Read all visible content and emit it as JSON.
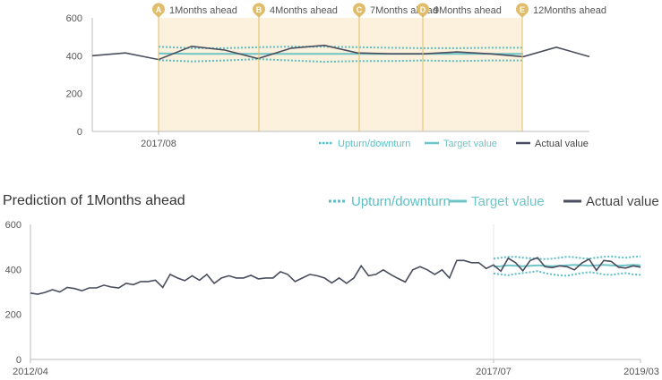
{
  "colors": {
    "actual": "#4a4d5e",
    "target": "#6ec4c6",
    "band": "#5bbfc4",
    "marker": "#e0bd6a",
    "shade": "#fbf1dc",
    "axis": "#bbbbbb",
    "grid": "#e6e6e6"
  },
  "chart_data": [
    {
      "type": "line",
      "title": "",
      "ylim": [
        0,
        600
      ],
      "yticks": [
        "0",
        "200",
        "400",
        "600"
      ],
      "xtick_labels": [
        "2017/08"
      ],
      "legend": {
        "placement": "bottom-right",
        "items": [
          "Upturn/downturn",
          "Target value",
          "Actual value"
        ]
      },
      "markers": [
        {
          "letter": "A",
          "label": "1Months ahead"
        },
        {
          "letter": "B",
          "label": "4Months ahead"
        },
        {
          "letter": "C",
          "label": "7Months ahead"
        },
        {
          "letter": "D",
          "label": "9Months ahead"
        },
        {
          "letter": "E",
          "label": "12Months ahead"
        }
      ],
      "series": [
        {
          "name": "Actual value",
          "values": [
            400,
            415,
            380,
            450,
            430,
            385,
            440,
            455,
            415,
            410,
            410,
            420,
            410,
            395,
            445,
            395
          ]
        },
        {
          "name": "Target value",
          "values": [
            null,
            null,
            412,
            410,
            410,
            410,
            410,
            410,
            410,
            410,
            410,
            410,
            410,
            410,
            null,
            null
          ]
        },
        {
          "name": "Upturn/downturn",
          "upper": [
            null,
            null,
            448,
            440,
            440,
            445,
            448,
            448,
            445,
            442,
            440,
            440,
            442,
            442,
            null,
            null
          ],
          "lower": [
            null,
            null,
            377,
            370,
            375,
            382,
            375,
            368,
            372,
            372,
            375,
            372,
            375,
            375,
            null,
            null
          ]
        }
      ]
    },
    {
      "type": "line",
      "title": "Prediction of 1Months ahead",
      "ylim": [
        0,
        600
      ],
      "yticks": [
        "0",
        "200",
        "400",
        "600"
      ],
      "xtick_labels": [
        "2012/04",
        "2017/07",
        "2019/03"
      ],
      "legend": {
        "placement": "top-right",
        "items": [
          "Upturn/downturn",
          "Target value",
          "Actual value"
        ]
      },
      "series": [
        {
          "name": "Actual value",
          "values": [
            295,
            290,
            298,
            310,
            300,
            320,
            315,
            305,
            318,
            318,
            330,
            322,
            318,
            338,
            332,
            346,
            346,
            352,
            320,
            378,
            362,
            350,
            372,
            352,
            378,
            338,
            362,
            372,
            362,
            362,
            374,
            358,
            362,
            362,
            390,
            378,
            346,
            362,
            378,
            372,
            362,
            340,
            362,
            338,
            362,
            416,
            372,
            378,
            398,
            378,
            360,
            344,
            398,
            412,
            398,
            378,
            398,
            362,
            440,
            440,
            430,
            430,
            404,
            420,
            392,
            450,
            430,
            394,
            440,
            452,
            412,
            408,
            416,
            412,
            398,
            428,
            446,
            396,
            440,
            436,
            410,
            406,
            416,
            410
          ]
        },
        {
          "name": "Target value",
          "values": [
            null,
            null,
            null,
            null,
            null,
            null,
            null,
            null,
            null,
            null,
            null,
            null,
            null,
            null,
            null,
            null,
            null,
            null,
            null,
            null,
            null,
            null,
            null,
            null,
            null,
            null,
            null,
            null,
            null,
            null,
            null,
            null,
            null,
            null,
            null,
            null,
            null,
            null,
            null,
            null,
            null,
            null,
            null,
            null,
            null,
            null,
            null,
            null,
            null,
            null,
            null,
            null,
            null,
            null,
            null,
            null,
            null,
            null,
            null,
            null,
            null,
            null,
            null,
            412,
            414,
            418,
            416,
            414,
            416,
            418,
            416,
            414,
            416,
            418,
            420,
            418,
            416,
            418,
            420,
            418,
            416,
            418,
            420,
            418
          ]
        },
        {
          "name": "Upturn/downturn",
          "upper": [
            null,
            null,
            null,
            null,
            null,
            null,
            null,
            null,
            null,
            null,
            null,
            null,
            null,
            null,
            null,
            null,
            null,
            null,
            null,
            null,
            null,
            null,
            null,
            null,
            null,
            null,
            null,
            null,
            null,
            null,
            null,
            null,
            null,
            null,
            null,
            null,
            null,
            null,
            null,
            null,
            null,
            null,
            null,
            null,
            null,
            null,
            null,
            null,
            null,
            null,
            null,
            null,
            null,
            null,
            null,
            null,
            null,
            null,
            null,
            null,
            null,
            null,
            null,
            448,
            452,
            456,
            456,
            452,
            450,
            448,
            446,
            448,
            452,
            456,
            454,
            450,
            448,
            452,
            456,
            458,
            454,
            452,
            456,
            458
          ],
          "lower": [
            null,
            null,
            null,
            null,
            null,
            null,
            null,
            null,
            null,
            null,
            null,
            null,
            null,
            null,
            null,
            null,
            null,
            null,
            null,
            null,
            null,
            null,
            null,
            null,
            null,
            null,
            null,
            null,
            null,
            null,
            null,
            null,
            null,
            null,
            null,
            null,
            null,
            null,
            null,
            null,
            null,
            null,
            null,
            null,
            null,
            null,
            null,
            null,
            null,
            null,
            null,
            null,
            null,
            null,
            null,
            null,
            null,
            null,
            null,
            null,
            null,
            null,
            null,
            382,
            378,
            374,
            380,
            384,
            388,
            392,
            384,
            378,
            374,
            372,
            378,
            384,
            388,
            384,
            378,
            376,
            380,
            384,
            378,
            376
          ]
        }
      ]
    }
  ]
}
